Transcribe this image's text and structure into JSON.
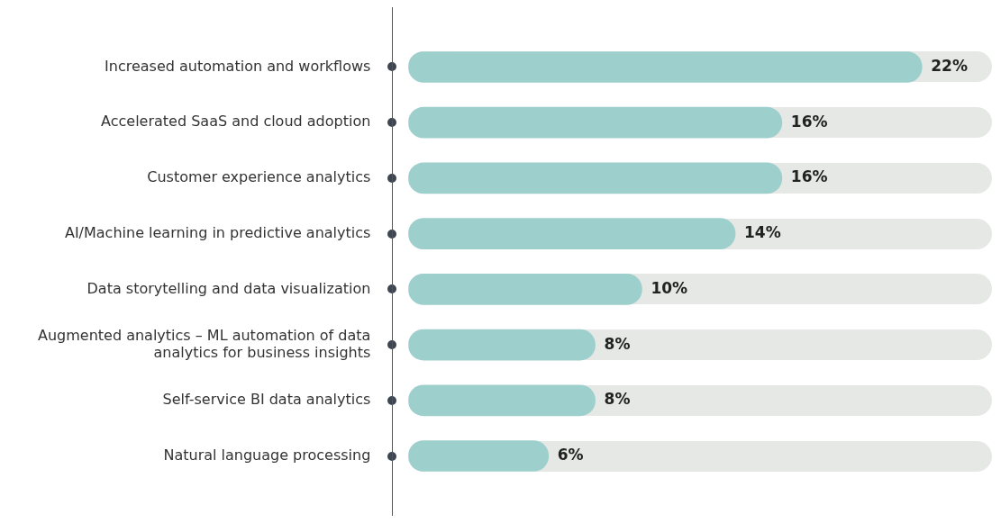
{
  "chart_data": {
    "type": "bar",
    "orientation": "horizontal",
    "tick_labels": "y",
    "grid": false,
    "categories": [
      "Increased automation and workflows",
      "Accelerated SaaS and cloud adoption",
      "Customer experience analytics",
      "AI/Machine learning in predictive analytics",
      "Data storytelling and data visualization",
      "Augmented analytics – ML automation of data analytics for business insights",
      "Self-service BI data analytics",
      "Natural language processing"
    ],
    "values": [
      22,
      16,
      16,
      14,
      10,
      8,
      8,
      6
    ],
    "value_labels": [
      "22%",
      "16%",
      "16%",
      "14%",
      "10%",
      "8%",
      "8%",
      "6%"
    ],
    "color": "#9dcfcc"
  }
}
